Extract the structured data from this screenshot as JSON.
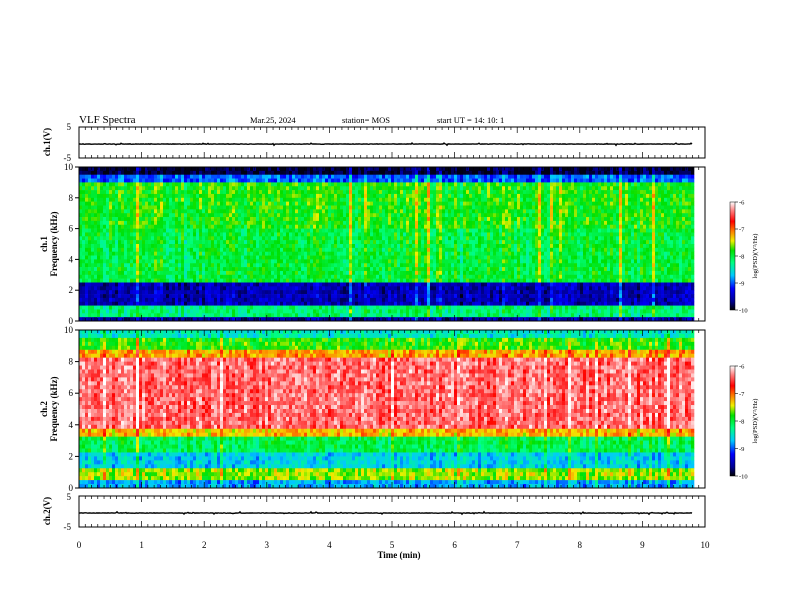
{
  "header": {
    "title": "VLF Spectra",
    "date": "Mar.25, 2024",
    "station": "station= MOS",
    "start_ut": "start UT =  14: 10: 1"
  },
  "chart_data": [
    {
      "type": "line",
      "name": "ch1-waveform",
      "ylabel": "ch.1(V)",
      "ylim": [
        -5,
        5
      ],
      "yticks": [
        "5",
        "-5"
      ],
      "xlim": [
        0,
        10
      ],
      "baseline": -0.5
    },
    {
      "type": "heatmap",
      "name": "ch1-spectrogram",
      "ylabel": "ch.1\nFrequency (kHz)",
      "ylabel_lines": [
        "ch.1",
        "Frequency (kHz)"
      ],
      "ylim": [
        0,
        10
      ],
      "yticks": [
        "0",
        "2",
        "4",
        "6",
        "8",
        "10"
      ],
      "xlim": [
        0,
        10
      ],
      "data_end_min": 9.8,
      "colorbar": {
        "label": "log(PSD)(V²/Hz)",
        "range": [
          -10,
          -6
        ],
        "ticks": [
          "-6",
          "-7",
          "-8",
          "-9",
          "-10"
        ]
      }
    },
    {
      "type": "heatmap",
      "name": "ch2-spectrogram",
      "ylabel": "ch.2\nFrequency (kHz)",
      "ylabel_lines": [
        "ch.2",
        "Frequency (kHz)"
      ],
      "ylim": [
        0,
        10
      ],
      "yticks": [
        "0",
        "2",
        "4",
        "6",
        "8",
        "10"
      ],
      "xlim": [
        0,
        10
      ],
      "data_end_min": 9.8,
      "colorbar": {
        "label": "log(PSD)(V²/Hz)",
        "range": [
          -10,
          -6
        ],
        "ticks": [
          "-6",
          "-7",
          "-8",
          "-9",
          "-10"
        ]
      }
    },
    {
      "type": "line",
      "name": "ch2-waveform",
      "ylabel": "ch.2(V)",
      "ylim": [
        -5,
        5
      ],
      "yticks": [
        "5",
        "-5"
      ],
      "xlim": [
        0,
        10
      ],
      "baseline": -0.5
    }
  ],
  "xaxis": {
    "label": "Time (min)",
    "ticks": [
      "0",
      "1",
      "2",
      "3",
      "4",
      "5",
      "6",
      "7",
      "8",
      "9",
      "10"
    ]
  },
  "colors": {
    "jet": [
      "#000080",
      "#0000ff",
      "#00ffff",
      "#00ff00",
      "#ffff00",
      "#ff0000",
      "#ffffff"
    ]
  }
}
